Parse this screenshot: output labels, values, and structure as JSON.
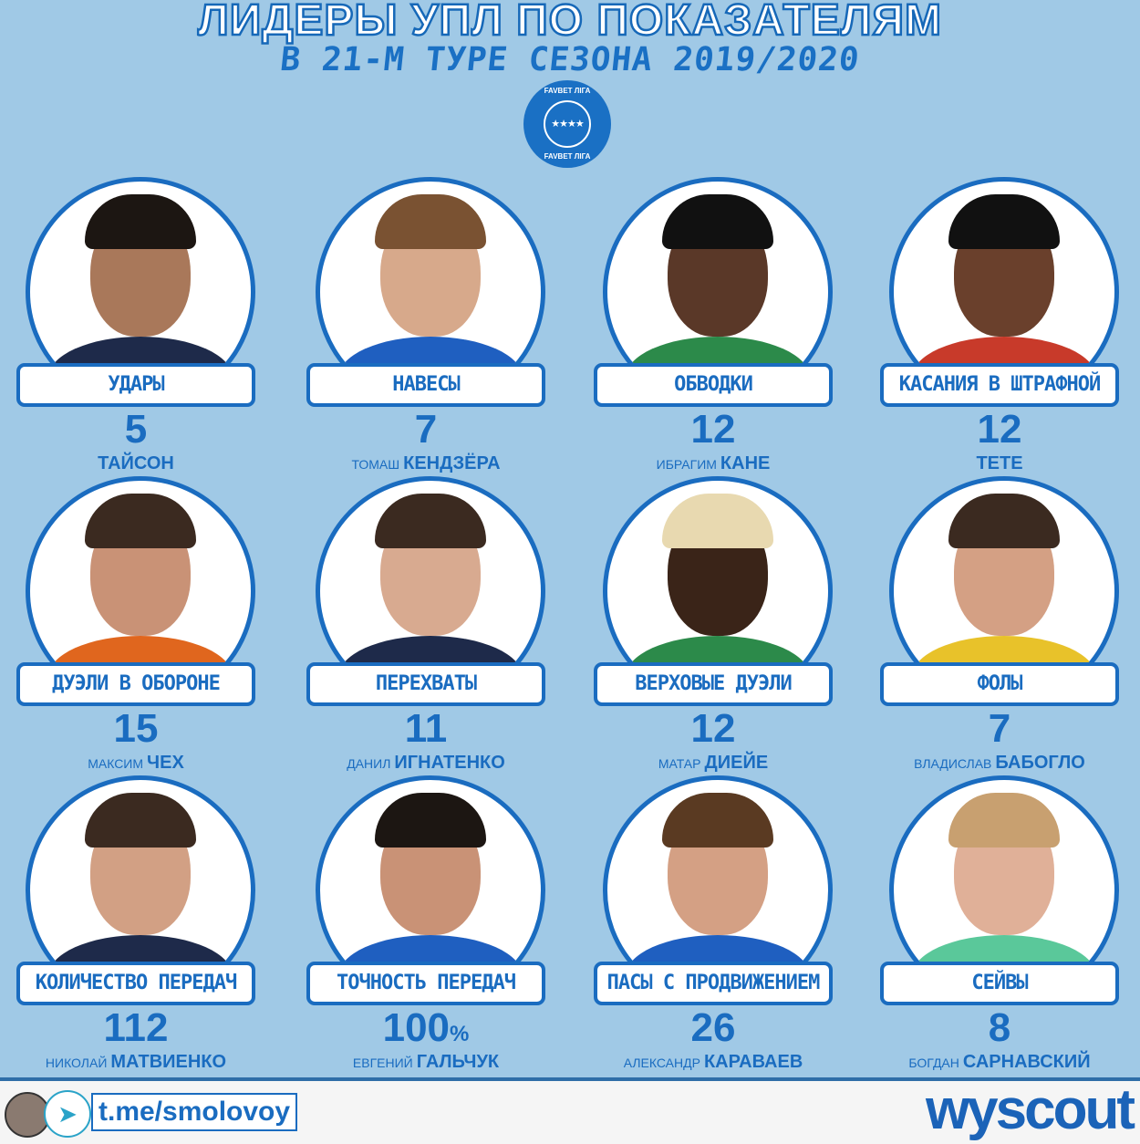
{
  "header": {
    "title": "ЛИДЕРЫ УПЛ ПО ПОКАЗАТЕЛЯМ",
    "subtitle": "В 21-М ТУРЕ СЕЗОНА 2019/2020",
    "league_logo_text": "FAVBET ЛІГА"
  },
  "colors": {
    "background": "#a0c9e6",
    "accent": "#1a6cc0"
  },
  "leaders": [
    {
      "stat": "УДАРЫ",
      "value": "5",
      "first": "",
      "last": "ТАЙСОН",
      "shirt": "#1e2a4a",
      "skin": "#a9785a",
      "hair": "#1c1612"
    },
    {
      "stat": "НАВЕСЫ",
      "value": "7",
      "first": "ТОМАШ",
      "last": "КЕНДЗЁРА",
      "shirt": "#1f5fc0",
      "skin": "#d7a98b",
      "hair": "#7a5232"
    },
    {
      "stat": "ОБВОДКИ",
      "value": "12",
      "first": "ИБРАГИМ",
      "last": "КАНЕ",
      "shirt": "#2c8a4a",
      "skin": "#5a3828",
      "hair": "#111"
    },
    {
      "stat": "КАСАНИЯ В ШТРАФНОЙ",
      "value": "12",
      "first": "",
      "last": "ТЕТЕ",
      "shirt": "#c83a2a",
      "skin": "#6a402c",
      "hair": "#111"
    },
    {
      "stat": "ДУЭЛИ В ОБОРОНЕ",
      "value": "15",
      "first": "МАКСИМ",
      "last": "ЧЕХ",
      "shirt": "#e0661e",
      "skin": "#c99276",
      "hair": "#3b2a20"
    },
    {
      "stat": "ПЕРЕХВАТЫ",
      "value": "11",
      "first": "ДАНИЛ",
      "last": "ИГНАТЕНКО",
      "shirt": "#1e2a4a",
      "skin": "#d8aa90",
      "hair": "#3b2a20"
    },
    {
      "stat": "ВЕРХОВЫЕ ДУЭЛИ",
      "value": "12",
      "first": "МАТАР",
      "last": "ДИЕЙЕ",
      "shirt": "#2c8a4a",
      "skin": "#3a2418",
      "hair": "#e8d9b0"
    },
    {
      "stat": "ФОЛЫ",
      "value": "7",
      "first": "ВЛАДИСЛАВ",
      "last": "БАБОГЛО",
      "shirt": "#e8c22a",
      "skin": "#d4a084",
      "hair": "#3b2a20"
    },
    {
      "stat": "КОЛИЧЕСТВО ПЕРЕДАЧ",
      "value": "112",
      "first": "НИКОЛАЙ",
      "last": "МАТВИЕНКО",
      "shirt": "#1e2a4a",
      "skin": "#d2a084",
      "hair": "#3b2a20"
    },
    {
      "stat": "ТОЧНОСТЬ ПЕРЕДАЧ",
      "value": "100",
      "unit": "%",
      "first": "ЕВГЕНИЙ",
      "last": "ГАЛЬЧУК",
      "shirt": "#1f5fc0",
      "skin": "#c99276",
      "hair": "#1c1612"
    },
    {
      "stat": "ПАСЫ С ПРОДВИЖЕНИЕМ",
      "value": "26",
      "first": "АЛЕКСАНДР",
      "last": "КАРАВАЕВ",
      "shirt": "#1f5fc0",
      "skin": "#d4a084",
      "hair": "#5a3a22"
    },
    {
      "stat": "СЕЙВЫ",
      "value": "8",
      "first": "БОГДАН",
      "last": "САРНАВСКИЙ",
      "shirt": "#5ac89a",
      "skin": "#e0b098",
      "hair": "#c8a070"
    }
  ],
  "footer": {
    "link": "t.me/smolovoy",
    "brand": "wyscout"
  }
}
